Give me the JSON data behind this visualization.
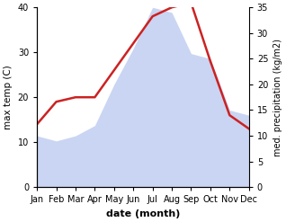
{
  "months": [
    "Jan",
    "Feb",
    "Mar",
    "Apr",
    "May",
    "Jun",
    "Jul",
    "Aug",
    "Sep",
    "Oct",
    "Nov",
    "Dec"
  ],
  "temperature": [
    14,
    19,
    20,
    20,
    26,
    32,
    38,
    40,
    41,
    28,
    16,
    13
  ],
  "precipitation": [
    10,
    9,
    10,
    12,
    20,
    27,
    35,
    34,
    26,
    25,
    15,
    14
  ],
  "temp_color": "#cc2222",
  "precip_color": "#b8c8ee",
  "ylabel_left": "max temp (C)",
  "ylabel_right": "med. precipitation (kg/m2)",
  "xlabel": "date (month)",
  "ylim_left": [
    0,
    40
  ],
  "ylim_right": [
    0,
    35
  ],
  "yticks_left": [
    0,
    10,
    20,
    30,
    40
  ],
  "yticks_right": [
    0,
    5,
    10,
    15,
    20,
    25,
    30,
    35
  ],
  "background_color": "#ffffff",
  "temp_linewidth": 1.8,
  "precip_alpha": 0.75
}
